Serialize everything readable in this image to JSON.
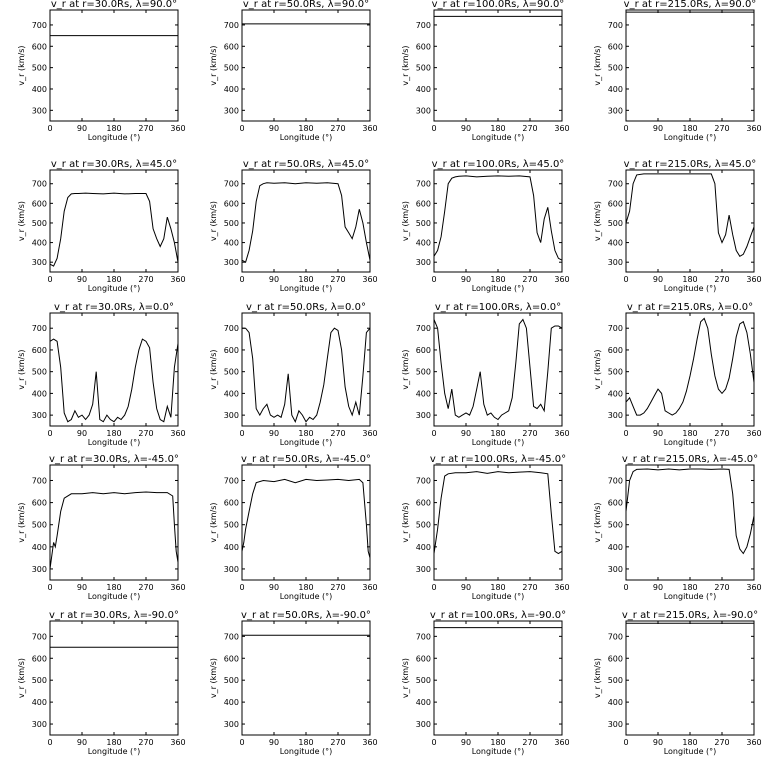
{
  "chart_data": {
    "type": "line",
    "layout": "5 rows x 4 columns grid of line plots",
    "xlabel": "Longitude (°)",
    "ylabel": "v_r (km/s)",
    "xlim": [
      0,
      360
    ],
    "ylim": [
      250,
      770
    ],
    "xticks": [
      0,
      90,
      180,
      270,
      360
    ],
    "yticks": [
      300,
      400,
      500,
      600,
      700
    ],
    "panels": [
      {
        "title": "v_r at r=30.0Rs, λ=90.0°",
        "x": [
          0,
          360
        ],
        "y": [
          650,
          650
        ]
      },
      {
        "title": "v_r at r=50.0Rs, λ=90.0°",
        "x": [
          0,
          360
        ],
        "y": [
          705,
          705
        ]
      },
      {
        "title": "v_r at r=100.0Rs, λ=90.0°",
        "x": [
          0,
          360
        ],
        "y": [
          740,
          740
        ]
      },
      {
        "title": "v_r at r=215.0Rs, λ=90.0°",
        "x": [
          0,
          360
        ],
        "y": [
          760,
          760
        ]
      },
      {
        "title": "v_r at r=30.0Rs, λ=45.0°",
        "x": [
          0,
          10,
          20,
          30,
          40,
          50,
          60,
          70,
          80,
          100,
          120,
          150,
          180,
          210,
          240,
          270,
          280,
          290,
          300,
          310,
          320,
          330,
          340,
          350,
          355,
          360
        ],
        "y": [
          290,
          280,
          320,
          420,
          560,
          630,
          648,
          650,
          650,
          652,
          650,
          648,
          652,
          648,
          650,
          650,
          610,
          470,
          420,
          380,
          420,
          530,
          470,
          400,
          350,
          300
        ]
      },
      {
        "title": "v_r at r=50.0Rs, λ=45.0°",
        "x": [
          0,
          10,
          20,
          30,
          40,
          50,
          60,
          70,
          90,
          120,
          150,
          180,
          210,
          240,
          270,
          280,
          290,
          300,
          310,
          320,
          330,
          340,
          350,
          360
        ],
        "y": [
          310,
          300,
          360,
          460,
          610,
          690,
          700,
          705,
          702,
          705,
          700,
          705,
          702,
          705,
          700,
          640,
          480,
          450,
          420,
          480,
          570,
          500,
          400,
          310
        ]
      },
      {
        "title": "v_r at r=100.0Rs, λ=45.0°",
        "x": [
          0,
          10,
          20,
          30,
          40,
          50,
          60,
          70,
          90,
          120,
          150,
          180,
          210,
          240,
          270,
          280,
          290,
          300,
          310,
          320,
          330,
          340,
          350,
          360
        ],
        "y": [
          330,
          360,
          430,
          560,
          700,
          728,
          735,
          738,
          740,
          735,
          738,
          740,
          738,
          740,
          735,
          640,
          450,
          400,
          520,
          580,
          460,
          360,
          320,
          310
        ]
      },
      {
        "title": "v_r at r=215.0Rs, λ=45.0°",
        "x": [
          0,
          10,
          20,
          30,
          50,
          90,
          120,
          150,
          180,
          210,
          240,
          250,
          260,
          270,
          280,
          290,
          300,
          310,
          320,
          330,
          340,
          350,
          360
        ],
        "y": [
          500,
          560,
          700,
          745,
          750,
          750,
          750,
          750,
          750,
          750,
          750,
          700,
          450,
          400,
          440,
          540,
          440,
          360,
          330,
          340,
          380,
          430,
          480
        ]
      },
      {
        "title": "v_r at r=30.0Rs, λ=0.0°",
        "x": [
          0,
          10,
          20,
          30,
          40,
          50,
          60,
          70,
          80,
          90,
          100,
          110,
          120,
          130,
          140,
          150,
          160,
          170,
          180,
          190,
          200,
          210,
          220,
          230,
          240,
          250,
          260,
          270,
          280,
          290,
          300,
          310,
          320,
          330,
          340,
          350,
          360
        ],
        "y": [
          640,
          650,
          640,
          520,
          310,
          270,
          280,
          320,
          290,
          300,
          280,
          300,
          350,
          500,
          280,
          270,
          300,
          280,
          270,
          290,
          280,
          300,
          340,
          420,
          520,
          600,
          650,
          640,
          610,
          450,
          330,
          280,
          270,
          340,
          290,
          520,
          630
        ]
      },
      {
        "title": "v_r at r=50.0Rs, λ=0.0°",
        "x": [
          0,
          10,
          20,
          30,
          40,
          50,
          60,
          70,
          80,
          90,
          100,
          110,
          120,
          130,
          140,
          150,
          160,
          170,
          180,
          190,
          200,
          210,
          220,
          230,
          240,
          250,
          260,
          270,
          280,
          290,
          300,
          310,
          320,
          330,
          340,
          350,
          360
        ],
        "y": [
          700,
          700,
          680,
          560,
          330,
          300,
          330,
          350,
          300,
          290,
          300,
          290,
          350,
          490,
          300,
          270,
          320,
          300,
          270,
          290,
          280,
          300,
          360,
          440,
          560,
          680,
          700,
          690,
          600,
          430,
          340,
          300,
          360,
          300,
          480,
          680,
          700
        ]
      },
      {
        "title": "v_r at r=100.0Rs, λ=0.0°",
        "x": [
          0,
          10,
          20,
          30,
          40,
          50,
          60,
          70,
          80,
          90,
          100,
          110,
          120,
          130,
          140,
          150,
          160,
          170,
          180,
          190,
          200,
          210,
          220,
          230,
          240,
          250,
          260,
          270,
          280,
          290,
          300,
          310,
          320,
          330,
          340,
          350,
          360
        ],
        "y": [
          740,
          700,
          540,
          400,
          330,
          420,
          300,
          290,
          300,
          310,
          300,
          340,
          420,
          500,
          350,
          300,
          310,
          290,
          280,
          300,
          310,
          320,
          380,
          540,
          720,
          740,
          700,
          520,
          340,
          330,
          350,
          320,
          500,
          700,
          710,
          710,
          700
        ]
      },
      {
        "title": "v_r at r=215.0Rs, λ=0.0°",
        "x": [
          0,
          10,
          20,
          30,
          40,
          50,
          60,
          70,
          80,
          90,
          100,
          110,
          120,
          130,
          140,
          150,
          160,
          170,
          180,
          190,
          200,
          210,
          220,
          230,
          240,
          250,
          260,
          270,
          280,
          290,
          300,
          310,
          320,
          330,
          340,
          350,
          360
        ],
        "y": [
          360,
          380,
          340,
          300,
          300,
          310,
          330,
          360,
          390,
          420,
          400,
          320,
          310,
          300,
          310,
          330,
          360,
          410,
          480,
          560,
          650,
          730,
          745,
          700,
          580,
          480,
          420,
          400,
          420,
          470,
          560,
          660,
          720,
          730,
          680,
          580,
          450
        ]
      },
      {
        "title": "v_r at r=30.0Rs, λ=-45.0°",
        "x": [
          0,
          5,
          10,
          15,
          20,
          30,
          40,
          60,
          90,
          120,
          150,
          180,
          210,
          240,
          270,
          300,
          330,
          345,
          350,
          355,
          360
        ],
        "y": [
          300,
          360,
          420,
          400,
          450,
          560,
          620,
          640,
          640,
          645,
          640,
          645,
          640,
          645,
          648,
          645,
          645,
          630,
          500,
          380,
          330
        ]
      },
      {
        "title": "v_r at r=50.0Rs, λ=-45.0°",
        "x": [
          0,
          5,
          10,
          20,
          30,
          40,
          60,
          90,
          120,
          150,
          180,
          210,
          240,
          270,
          300,
          330,
          340,
          350,
          355,
          360
        ],
        "y": [
          380,
          420,
          480,
          560,
          640,
          690,
          700,
          695,
          705,
          690,
          705,
          700,
          702,
          705,
          700,
          705,
          690,
          500,
          380,
          350
        ]
      },
      {
        "title": "v_r at r=100.0Rs, λ=-45.0°",
        "x": [
          0,
          10,
          20,
          30,
          40,
          60,
          90,
          120,
          150,
          180,
          210,
          240,
          270,
          300,
          320,
          330,
          340,
          350,
          360
        ],
        "y": [
          370,
          480,
          620,
          720,
          730,
          735,
          735,
          740,
          732,
          740,
          735,
          738,
          740,
          735,
          730,
          550,
          380,
          370,
          380
        ]
      },
      {
        "title": "v_r at r=215.0Rs, λ=-45.0°",
        "x": [
          0,
          10,
          20,
          30,
          60,
          90,
          120,
          150,
          180,
          210,
          240,
          270,
          290,
          300,
          310,
          320,
          330,
          340,
          350,
          360
        ],
        "y": [
          560,
          700,
          740,
          750,
          752,
          748,
          752,
          748,
          752,
          752,
          750,
          752,
          750,
          640,
          450,
          390,
          370,
          400,
          460,
          540
        ]
      },
      {
        "title": "v_r at r=30.0Rs, λ=-90.0°",
        "x": [
          0,
          360
        ],
        "y": [
          650,
          650
        ]
      },
      {
        "title": "v_r at r=50.0Rs, λ=-90.0°",
        "x": [
          0,
          360
        ],
        "y": [
          705,
          705
        ]
      },
      {
        "title": "v_r at r=100.0Rs, λ=-90.0°",
        "x": [
          0,
          360
        ],
        "y": [
          740,
          740
        ]
      },
      {
        "title": "v_r at r=215.0Rs, λ=-90.0°",
        "x": [
          0,
          360
        ],
        "y": [
          760,
          760
        ]
      }
    ]
  }
}
